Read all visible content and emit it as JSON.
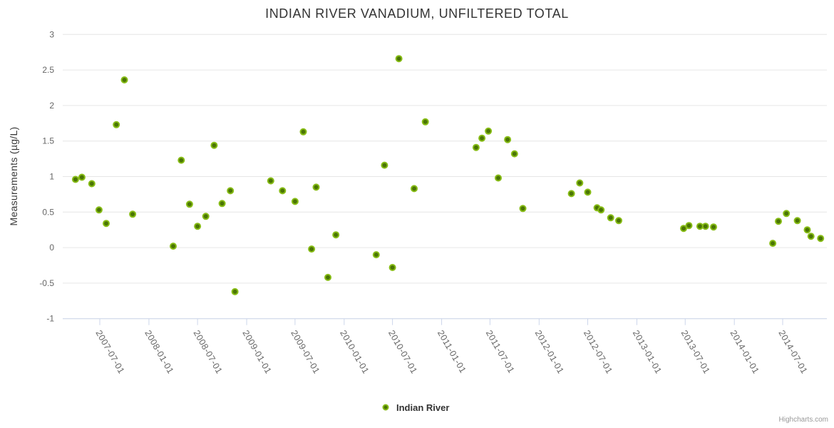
{
  "title": "INDIAN RIVER VANADIUM, UNFILTERED TOTAL",
  "credits": "Highcharts.com",
  "legend": {
    "label": "Indian River"
  },
  "colors": {
    "marker_fill": "#4a7504",
    "marker_stroke": "#87bc16",
    "grid": "#e6e6e6",
    "axis_line": "#ccd6eb",
    "tick_label": "#666666",
    "title": "#333333",
    "credits": "#999999"
  },
  "chart_data": {
    "type": "scatter",
    "title": "INDIAN RIVER VANADIUM, UNFILTERED TOTAL",
    "xlabel": "",
    "ylabel": "Measurements (µg/L)",
    "ylim": [
      -1,
      3
    ],
    "ytick_step": 0.5,
    "xlim": [
      "2007-02-15",
      "2015-01-10"
    ],
    "grid": true,
    "legend_position": "bottom-center",
    "y_ticks": [
      3,
      2.5,
      2,
      1.5,
      1,
      0.5,
      0,
      -0.5,
      -1
    ],
    "x_ticks": [
      "2007-07-01",
      "2008-01-01",
      "2008-07-01",
      "2009-01-01",
      "2009-07-01",
      "2010-01-01",
      "2010-07-01",
      "2011-01-01",
      "2011-07-01",
      "2012-01-01",
      "2012-07-01",
      "2013-01-01",
      "2013-07-01",
      "2014-01-01",
      "2014-07-01"
    ],
    "series": [
      {
        "name": "Indian River",
        "color": "#87bc16",
        "points": [
          [
            "2007-04-01",
            0.96
          ],
          [
            "2007-04-25",
            0.99
          ],
          [
            "2007-06-01",
            0.9
          ],
          [
            "2007-06-28",
            0.53
          ],
          [
            "2007-07-25",
            0.34
          ],
          [
            "2007-09-01",
            1.73
          ],
          [
            "2007-10-01",
            2.36
          ],
          [
            "2007-11-01",
            0.47
          ],
          [
            "2008-04-01",
            0.02
          ],
          [
            "2008-05-01",
            1.23
          ],
          [
            "2008-06-01",
            0.61
          ],
          [
            "2008-07-01",
            0.3
          ],
          [
            "2008-08-01",
            0.44
          ],
          [
            "2008-09-01",
            1.44
          ],
          [
            "2008-10-01",
            0.62
          ],
          [
            "2008-11-01",
            0.8
          ],
          [
            "2008-11-18",
            -0.62
          ],
          [
            "2009-04-01",
            0.94
          ],
          [
            "2009-05-15",
            0.8
          ],
          [
            "2009-07-01",
            0.65
          ],
          [
            "2009-08-01",
            1.63
          ],
          [
            "2009-09-01",
            -0.02
          ],
          [
            "2009-09-18",
            0.85
          ],
          [
            "2009-11-01",
            -0.42
          ],
          [
            "2009-12-01",
            0.18
          ],
          [
            "2010-05-01",
            -0.1
          ],
          [
            "2010-06-01",
            1.16
          ],
          [
            "2010-07-01",
            -0.28
          ],
          [
            "2010-07-25",
            2.66
          ],
          [
            "2010-09-20",
            0.83
          ],
          [
            "2010-11-01",
            1.77
          ],
          [
            "2011-05-10",
            1.41
          ],
          [
            "2011-06-01",
            1.54
          ],
          [
            "2011-06-25",
            1.64
          ],
          [
            "2011-08-01",
            0.98
          ],
          [
            "2011-09-05",
            1.52
          ],
          [
            "2011-10-01",
            1.32
          ],
          [
            "2011-11-01",
            0.55
          ],
          [
            "2012-05-01",
            0.76
          ],
          [
            "2012-06-01",
            0.91
          ],
          [
            "2012-07-01",
            0.78
          ],
          [
            "2012-08-05",
            0.56
          ],
          [
            "2012-08-20",
            0.53
          ],
          [
            "2012-09-25",
            0.42
          ],
          [
            "2012-10-25",
            0.38
          ],
          [
            "2013-06-25",
            0.27
          ],
          [
            "2013-07-15",
            0.31
          ],
          [
            "2013-08-25",
            0.3
          ],
          [
            "2013-09-15",
            0.3
          ],
          [
            "2013-10-15",
            0.29
          ],
          [
            "2014-05-25",
            0.06
          ],
          [
            "2014-06-15",
            0.37
          ],
          [
            "2014-07-15",
            0.48
          ],
          [
            "2014-08-25",
            0.38
          ],
          [
            "2014-10-01",
            0.25
          ],
          [
            "2014-10-15",
            0.16
          ],
          [
            "2014-11-20",
            0.13
          ]
        ]
      }
    ]
  }
}
